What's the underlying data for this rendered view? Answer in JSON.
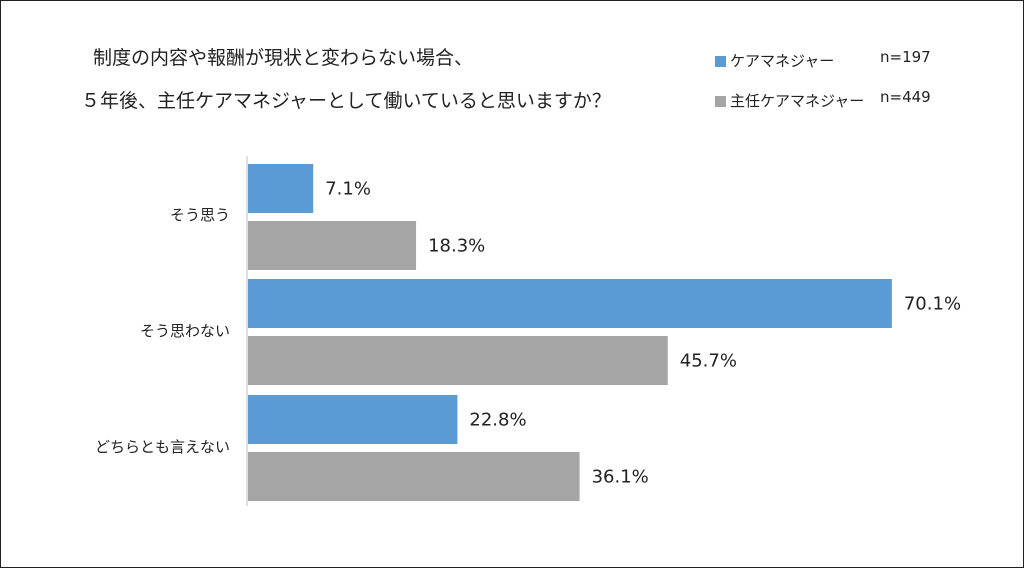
{
  "chart_data": {
    "type": "bar",
    "orientation": "horizontal",
    "title_lines": [
      "制度の内容や報酬が現状と変わらない場合、",
      "５年後、主任ケアマネジャーとして働いていると思いますか？"
    ],
    "categories": [
      "そう思う",
      "そう思わない",
      "どちらとも言えない"
    ],
    "series": [
      {
        "name": "ケアマネジャー",
        "n_label": "n=197",
        "color": "#5b9bd5",
        "values": [
          7.1,
          70.1,
          22.8
        ]
      },
      {
        "name": "主任ケアマネジャー",
        "n_label": "n=449",
        "color": "#a5a5a5",
        "values": [
          18.3,
          45.7,
          36.1
        ]
      }
    ],
    "value_labels": [
      [
        "7.1%",
        "70.1%",
        "22.8%"
      ],
      [
        "18.3%",
        "45.7%",
        "36.1%"
      ]
    ],
    "xlim": [
      0,
      100
    ],
    "unit": "%",
    "grid": false,
    "legend_position": "top-right"
  }
}
